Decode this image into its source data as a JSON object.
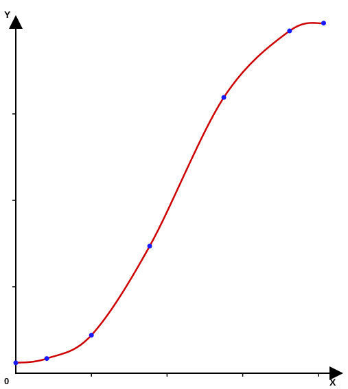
{
  "chart_data": {
    "type": "line",
    "title": "",
    "xlabel": "X",
    "ylabel": "Y",
    "origin_label": "0",
    "xlim": [
      0,
      4.2
    ],
    "ylim": [
      0,
      4.2
    ],
    "x_ticks": [
      1,
      2,
      3,
      4
    ],
    "y_ticks": [
      1,
      2,
      3,
      4
    ],
    "grid": false,
    "legend": "none",
    "series": [
      {
        "points": [
          {
            "x": 0.0,
            "y": 0.12
          },
          {
            "x": 0.41,
            "y": 0.17
          },
          {
            "x": 1.0,
            "y": 0.44
          },
          {
            "x": 1.77,
            "y": 1.47
          },
          {
            "x": 2.75,
            "y": 3.19
          },
          {
            "x": 3.62,
            "y": 3.96
          },
          {
            "x": 4.07,
            "y": 4.05
          }
        ]
      }
    ],
    "colors": {
      "axis": "#000000",
      "line": "#cc0000",
      "marker": "#1a1aff"
    }
  }
}
